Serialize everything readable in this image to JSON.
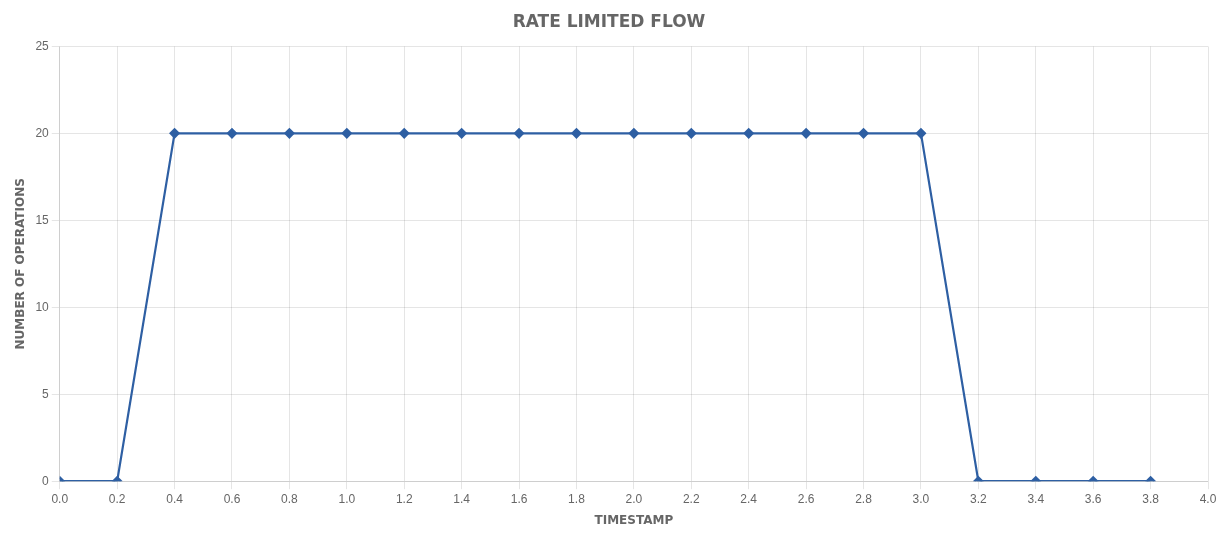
{
  "chart_data": {
    "type": "line",
    "title": "RATE LIMITED FLOW",
    "xlabel": "TIMESTAMP",
    "ylabel": "NUMBER OF OPERATIONS",
    "x": [
      0.0,
      0.2,
      0.4,
      0.6,
      0.8,
      1.0,
      1.2,
      1.4,
      1.6,
      1.8,
      2.0,
      2.2,
      2.4,
      2.6,
      2.8,
      3.0,
      3.2,
      3.4,
      3.6,
      3.8
    ],
    "values": [
      0,
      0,
      20,
      20,
      20,
      20,
      20,
      20,
      20,
      20,
      20,
      20,
      20,
      20,
      20,
      20,
      0,
      0,
      0,
      0
    ],
    "color": "#2e5fa3",
    "marker": "diamond",
    "xlim": [
      0.0,
      4.0
    ],
    "ylim": [
      0,
      25
    ],
    "xticks": [
      {
        "value": 0.0,
        "label": "0.0"
      },
      0.2,
      0.4,
      0.6,
      0.8,
      {
        "value": 1.0,
        "label": "1.0"
      },
      1.2,
      1.4,
      1.6,
      1.8,
      {
        "value": 2.0,
        "label": "2.0"
      },
      2.2,
      2.4,
      2.6,
      2.8,
      {
        "value": 3.0,
        "label": "3.0"
      },
      3.2,
      3.4,
      3.6,
      3.8,
      {
        "value": 4.0,
        "label": "4.0"
      }
    ],
    "yticks": [
      0,
      5,
      10,
      15,
      20,
      25
    ],
    "grid": true
  }
}
